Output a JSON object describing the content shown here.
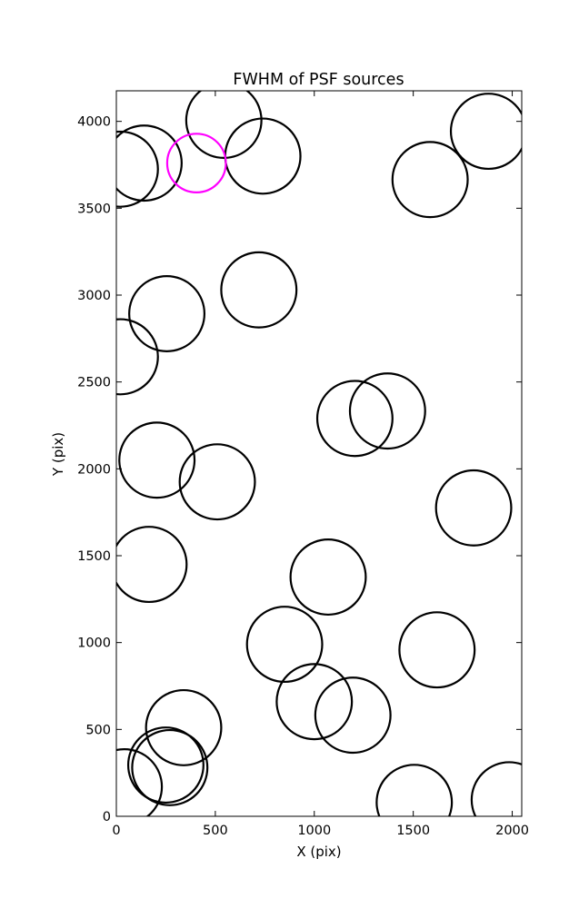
{
  "chart_data": {
    "type": "scatter",
    "title": "FWHM of PSF sources",
    "xlabel": "X (pix)",
    "ylabel": "Y (pix)",
    "xlim": [
      0,
      2048
    ],
    "ylim": [
      0,
      4176
    ],
    "xticks": [
      0,
      500,
      1000,
      1500,
      2000
    ],
    "yticks": [
      0,
      500,
      1000,
      1500,
      2000,
      2500,
      3000,
      3500,
      4000
    ],
    "grid": false,
    "marker": "open circle",
    "fwhm_radius": 190,
    "default_color": "#000000",
    "highlight_color": "#ff00ff",
    "series": [
      {
        "points": [
          {
            "x": 543,
            "y": 4006
          },
          {
            "x": 140,
            "y": 3760
          },
          {
            "x": 20,
            "y": 3725
          },
          {
            "x": 740,
            "y": 3800
          },
          {
            "x": 1585,
            "y": 3665
          },
          {
            "x": 1880,
            "y": 3943
          },
          {
            "x": 720,
            "y": 3030
          },
          {
            "x": 255,
            "y": 2893
          },
          {
            "x": 20,
            "y": 2645
          },
          {
            "x": 1205,
            "y": 2290
          },
          {
            "x": 1370,
            "y": 2333
          },
          {
            "x": 205,
            "y": 2050
          },
          {
            "x": 510,
            "y": 1925
          },
          {
            "x": 1805,
            "y": 1775
          },
          {
            "x": 165,
            "y": 1450
          },
          {
            "x": 1070,
            "y": 1377
          },
          {
            "x": 850,
            "y": 990
          },
          {
            "x": 1620,
            "y": 958
          },
          {
            "x": 1000,
            "y": 660
          },
          {
            "x": 1195,
            "y": 582
          },
          {
            "x": 340,
            "y": 510
          },
          {
            "x": 250,
            "y": 295
          },
          {
            "x": 270,
            "y": 280
          },
          {
            "x": 40,
            "y": 170
          },
          {
            "x": 1505,
            "y": 80
          },
          {
            "x": 1985,
            "y": 95
          }
        ]
      },
      {
        "highlight": true,
        "points": [
          {
            "x": 405,
            "y": 3760
          }
        ]
      }
    ]
  }
}
